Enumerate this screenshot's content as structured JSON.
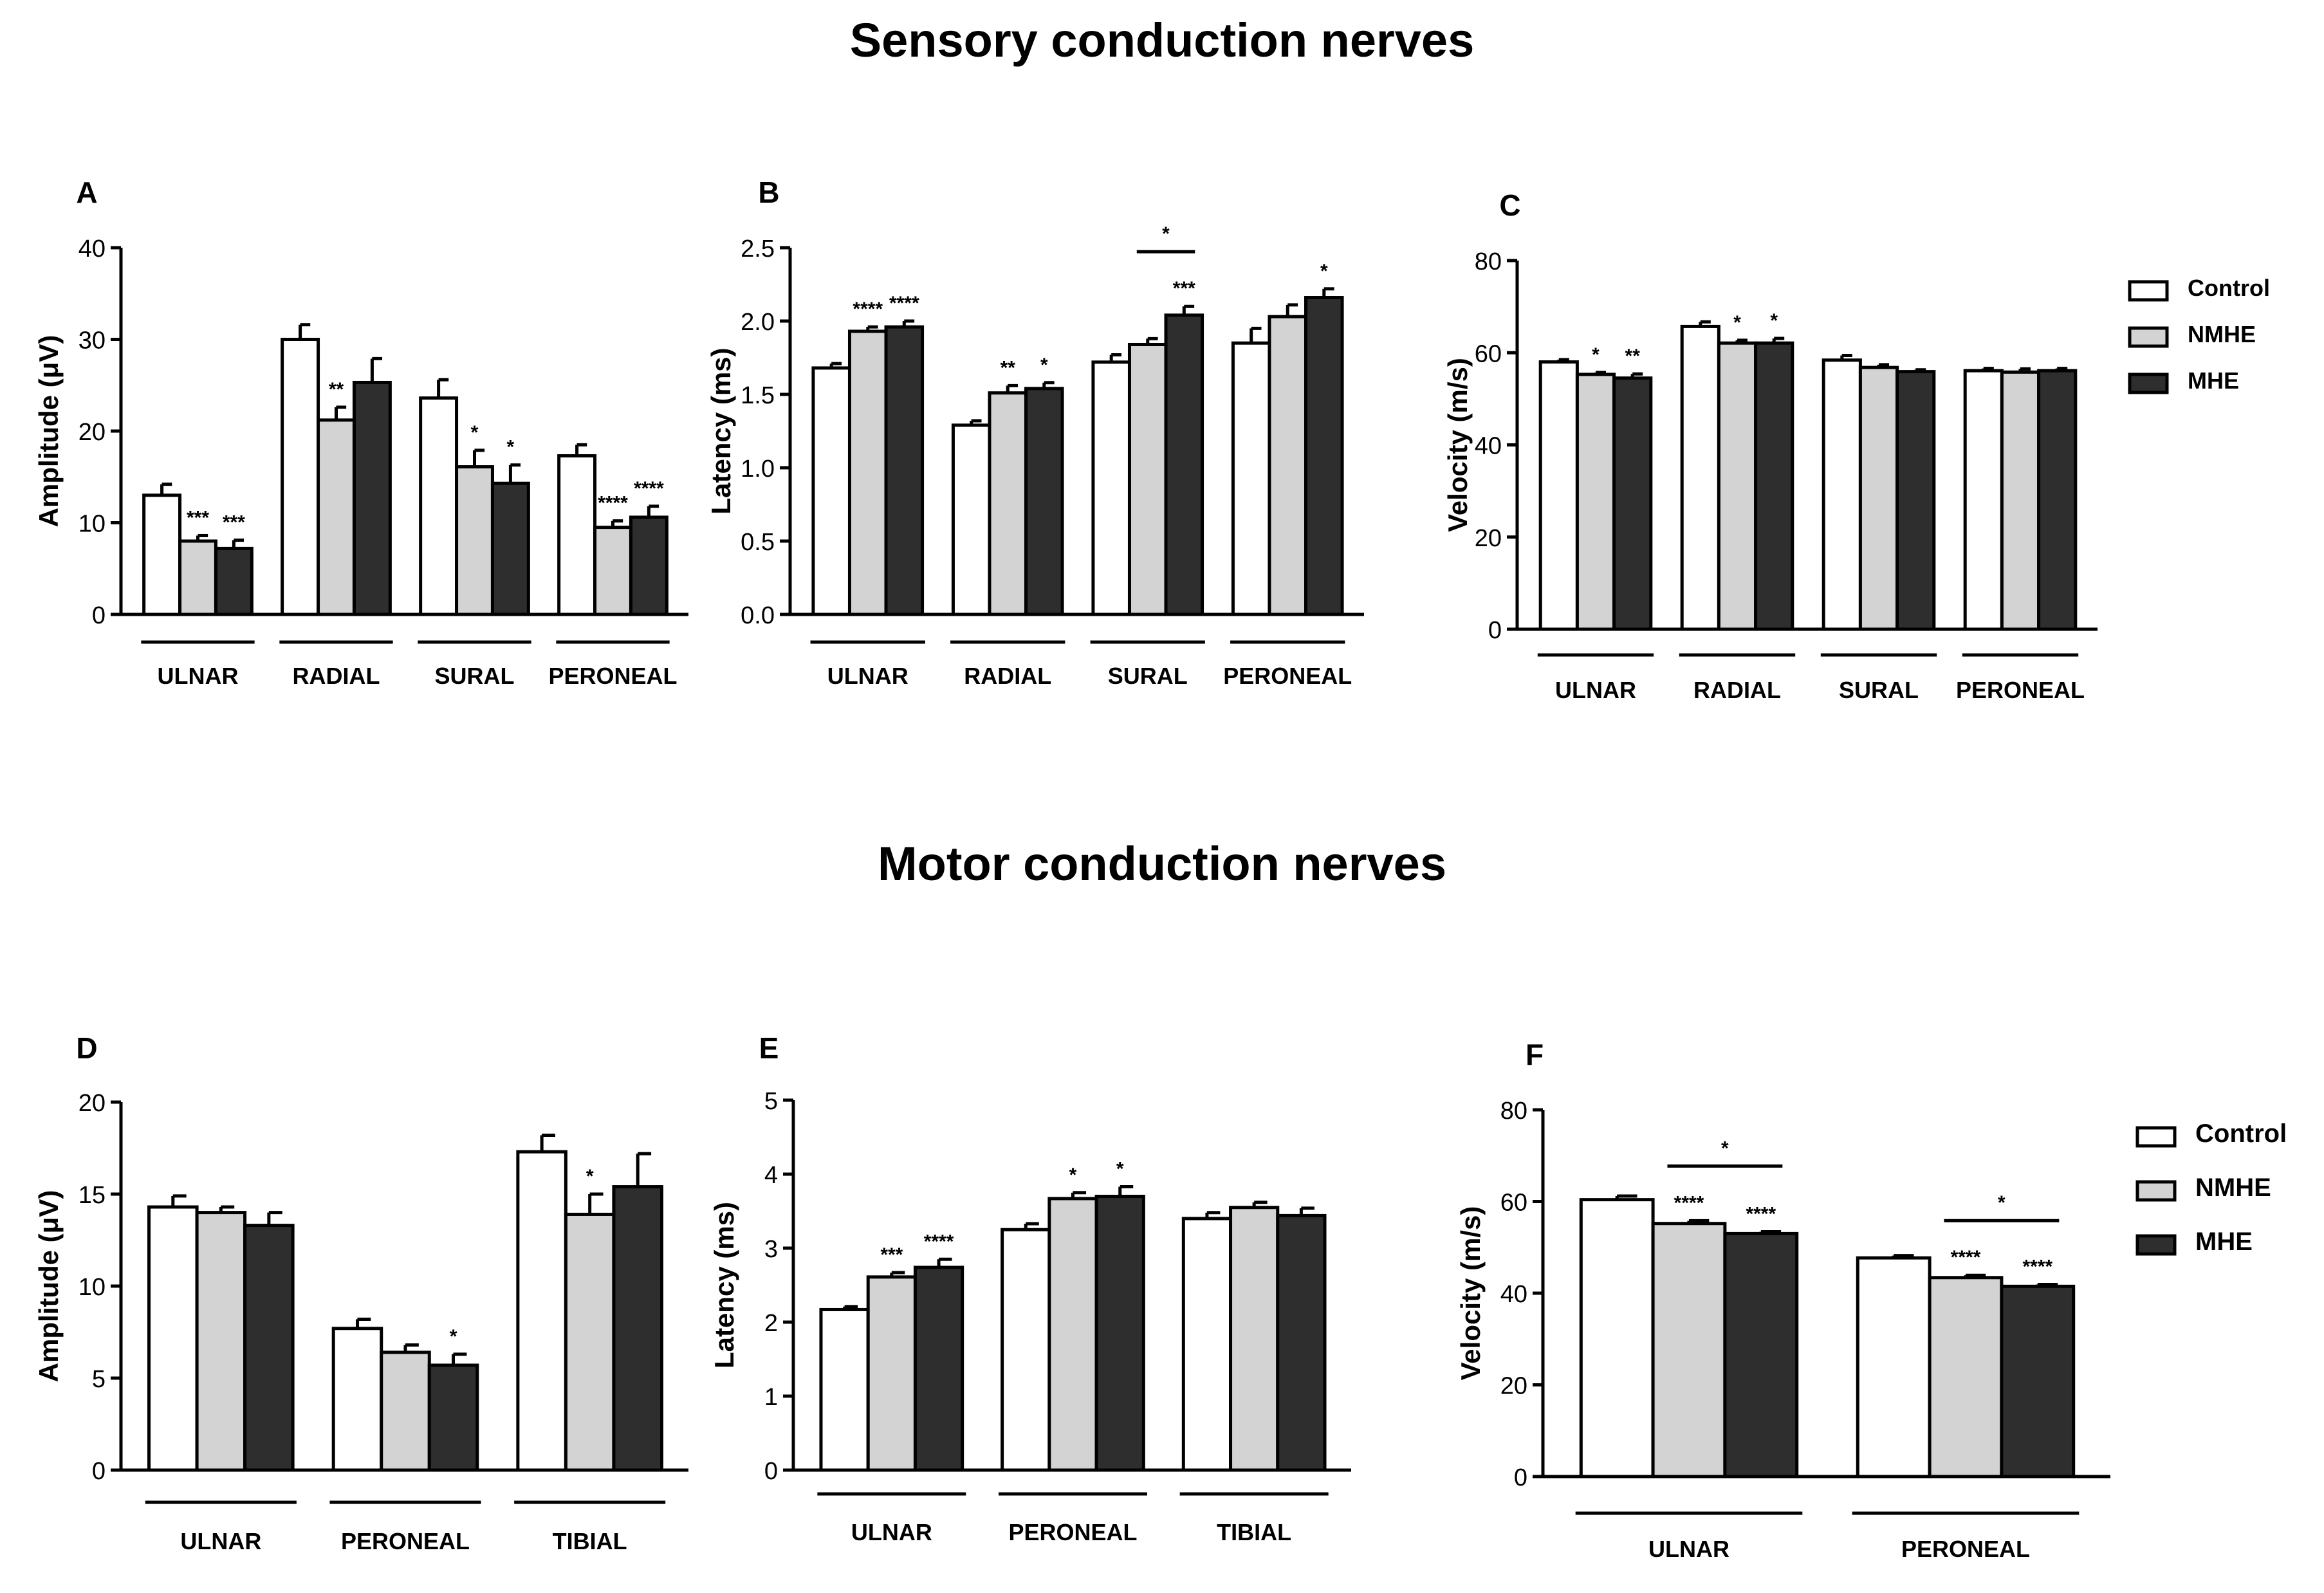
{
  "titles": {
    "sensory": "Sensory conduction nerves",
    "motor": "Motor conduction nerves"
  },
  "colors": {
    "Control": "#ffffff",
    "NMHE": "#d3d3d3",
    "MHE": "#2e2e2e",
    "axis": "#000000"
  },
  "legend_sensory": [
    "Control",
    "NMHE",
    "MHE"
  ],
  "legend_motor": [
    "Control",
    "NMHE",
    "MHE"
  ],
  "chart_data": [
    {
      "panel": "A",
      "type": "bar",
      "ylabel": "Amplitude (μV)",
      "ylim": [
        0,
        40
      ],
      "yticks": [
        "0",
        "10",
        "20",
        "30",
        "40"
      ],
      "categories": [
        "ULNAR",
        "RADIAL",
        "SURAL",
        "PERONEAL"
      ],
      "series": [
        {
          "name": "Control",
          "values": [
            13,
            30,
            23.6,
            17.3
          ],
          "errors": [
            1.2,
            1.6,
            2.0,
            1.2
          ],
          "marks": [
            "",
            "",
            "",
            ""
          ]
        },
        {
          "name": "NMHE",
          "values": [
            8,
            21.2,
            16.1,
            9.5
          ],
          "errors": [
            0.6,
            1.4,
            1.8,
            0.7
          ],
          "marks": [
            "***",
            "**",
            "*",
            "****"
          ]
        },
        {
          "name": "MHE",
          "values": [
            7.2,
            25.3,
            14.3,
            10.6
          ],
          "errors": [
            0.9,
            2.6,
            2.0,
            1.2
          ],
          "marks": [
            "***",
            "",
            "*",
            "****"
          ]
        }
      ],
      "brackets": []
    },
    {
      "panel": "B",
      "type": "bar",
      "ylabel": "Latency (ms)",
      "ylim": [
        0,
        2.5
      ],
      "yticks": [
        "0.0",
        "0.5",
        "1.0",
        "1.5",
        "2.0",
        "2.5"
      ],
      "categories": [
        "ULNAR",
        "RADIAL",
        "SURAL",
        "PERONEAL"
      ],
      "series": [
        {
          "name": "Control",
          "values": [
            1.68,
            1.29,
            1.72,
            1.85
          ],
          "errors": [
            0.03,
            0.03,
            0.05,
            0.1
          ],
          "marks": [
            "",
            "",
            "",
            ""
          ]
        },
        {
          "name": "NMHE",
          "values": [
            1.93,
            1.51,
            1.84,
            2.03
          ],
          "errors": [
            0.03,
            0.05,
            0.04,
            0.08
          ],
          "marks": [
            "****",
            "**",
            "",
            ""
          ]
        },
        {
          "name": "MHE",
          "values": [
            1.96,
            1.54,
            2.04,
            2.16
          ],
          "errors": [
            0.04,
            0.04,
            0.06,
            0.06
          ],
          "marks": [
            "****",
            "*",
            "***",
            "*"
          ]
        }
      ],
      "brackets": [
        {
          "group": 2,
          "from": 1,
          "to": 2,
          "label": "*"
        }
      ]
    },
    {
      "panel": "C",
      "type": "bar",
      "ylabel": "Velocity (m/s)",
      "ylim": [
        0,
        80
      ],
      "yticks": [
        "0",
        "20",
        "40",
        "60",
        "80"
      ],
      "categories": [
        "ULNAR",
        "RADIAL",
        "SURAL",
        "PERONEAL"
      ],
      "series": [
        {
          "name": "Control",
          "values": [
            58,
            65.7,
            58.4,
            56.1
          ],
          "errors": [
            0.5,
            1.0,
            1.0,
            0.5
          ],
          "marks": [
            "",
            "",
            "",
            ""
          ]
        },
        {
          "name": "NMHE",
          "values": [
            55.3,
            62.1,
            56.8,
            55.8
          ],
          "errors": [
            0.4,
            0.6,
            0.6,
            0.7
          ],
          "marks": [
            "*",
            "*",
            "",
            ""
          ]
        },
        {
          "name": "MHE",
          "values": [
            54.5,
            62.1,
            55.9,
            56.1
          ],
          "errors": [
            0.9,
            1.0,
            0.4,
            0.5
          ],
          "marks": [
            "**",
            "*",
            "",
            ""
          ]
        }
      ],
      "brackets": []
    },
    {
      "panel": "D",
      "type": "bar",
      "ylabel": "Amplitude (μV)",
      "ylim": [
        0,
        20
      ],
      "yticks": [
        "0",
        "5",
        "10",
        "15",
        "20"
      ],
      "categories": [
        "ULNAR",
        "PERONEAL",
        "TIBIAL"
      ],
      "series": [
        {
          "name": "Control",
          "values": [
            14.3,
            7.7,
            17.3
          ],
          "errors": [
            0.6,
            0.5,
            0.9
          ],
          "marks": [
            "",
            "",
            ""
          ]
        },
        {
          "name": "NMHE",
          "values": [
            14,
            6.4,
            13.9
          ],
          "errors": [
            0.3,
            0.4,
            1.1
          ],
          "marks": [
            "",
            "",
            "*"
          ]
        },
        {
          "name": "MHE",
          "values": [
            13.3,
            5.7,
            15.4
          ],
          "errors": [
            0.7,
            0.6,
            1.8
          ],
          "marks": [
            "",
            "*",
            ""
          ]
        }
      ],
      "brackets": []
    },
    {
      "panel": "E",
      "type": "bar",
      "ylabel": "Latency (ms)",
      "ylim": [
        0,
        5
      ],
      "yticks": [
        "0",
        "1",
        "2",
        "3",
        "4",
        "5"
      ],
      "categories": [
        "ULNAR",
        "PERONEAL",
        "TIBIAL"
      ],
      "series": [
        {
          "name": "Control",
          "values": [
            2.17,
            3.25,
            3.4
          ],
          "errors": [
            0.04,
            0.08,
            0.08
          ],
          "marks": [
            "",
            "",
            ""
          ]
        },
        {
          "name": "NMHE",
          "values": [
            2.61,
            3.67,
            3.55
          ],
          "errors": [
            0.06,
            0.08,
            0.07
          ],
          "marks": [
            "***",
            "*",
            ""
          ]
        },
        {
          "name": "MHE",
          "values": [
            2.74,
            3.7,
            3.44
          ],
          "errors": [
            0.11,
            0.13,
            0.1
          ],
          "marks": [
            "****",
            "*",
            ""
          ]
        }
      ],
      "brackets": []
    },
    {
      "panel": "F",
      "type": "bar",
      "ylabel": "Velocity (m/s)",
      "ylim": [
        0,
        80
      ],
      "yticks": [
        "0",
        "20",
        "40",
        "60",
        "80"
      ],
      "categories": [
        "ULNAR",
        "PERONEAL"
      ],
      "series": [
        {
          "name": "Control",
          "values": [
            60.4,
            47.7
          ],
          "errors": [
            0.8,
            0.5
          ],
          "marks": [
            "",
            ""
          ]
        },
        {
          "name": "NMHE",
          "values": [
            55.2,
            43.4
          ],
          "errors": [
            0.6,
            0.5
          ],
          "marks": [
            "****",
            "****"
          ]
        },
        {
          "name": "MHE",
          "values": [
            53,
            41.5
          ],
          "errors": [
            0.4,
            0.4
          ],
          "marks": [
            "****",
            "****"
          ]
        }
      ],
      "brackets": [
        {
          "group": 0,
          "from": 1,
          "to": 2,
          "label": "*"
        },
        {
          "group": 1,
          "from": 1,
          "to": 2,
          "label": "*"
        }
      ]
    }
  ]
}
